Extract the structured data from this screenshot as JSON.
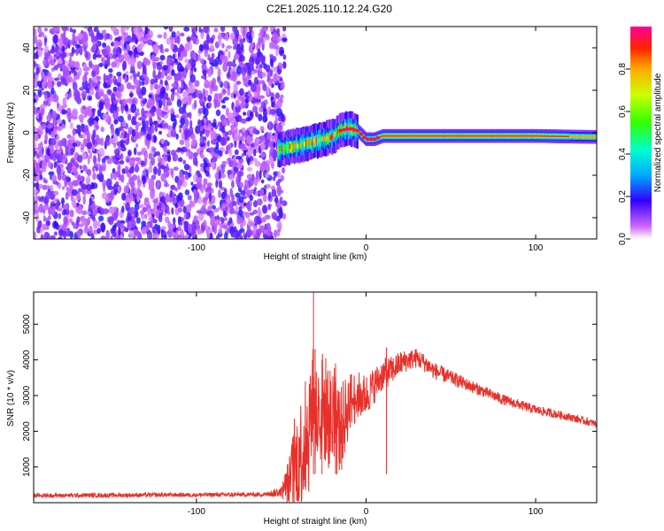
{
  "title": "C2E1.2025.110.12.24.G20",
  "colorbar": {
    "label": "Normalized spectral amplitude",
    "ticks": [
      "0.0",
      "0.2",
      "0.4",
      "0.6",
      "0.8"
    ],
    "range": [
      0,
      1
    ]
  },
  "chart_data": [
    {
      "type": "heatmap",
      "xlabel": "Height of straight line (km)",
      "ylabel": "Frequency (Hz)",
      "xlim": [
        -196,
        136
      ],
      "ylim": [
        -50,
        50
      ],
      "xticks": [
        "-100",
        "0",
        "100"
      ],
      "yticks": [
        "-40",
        "-20",
        "0",
        "20",
        "40"
      ],
      "noise_region_x": [
        -196,
        -52
      ],
      "signal_track": {
        "x": [
          -52,
          -40,
          -30,
          -20,
          -15,
          -10,
          -5,
          0,
          5,
          10,
          30,
          60,
          100,
          136
        ],
        "y": [
          -8,
          -6,
          -4,
          -2,
          1,
          2,
          1,
          -3,
          -3,
          -1.5,
          -1.5,
          -1.5,
          -1.5,
          -2
        ],
        "peak_amplitude": 0.95
      }
    },
    {
      "type": "line",
      "xlabel": "Height of straight line (km)",
      "ylabel": "SNR (10 * v/v)",
      "xlim": [
        -196,
        136
      ],
      "ylim": [
        0,
        5900
      ],
      "xticks": [
        "-100",
        "0",
        "100"
      ],
      "yticks": [
        "1000",
        "2000",
        "3000",
        "4000",
        "5000"
      ],
      "series": [
        {
          "color": "#e8302a",
          "x": [
            -196,
            -150,
            -100,
            -60,
            -50,
            -45,
            -40,
            -35,
            -32,
            -30,
            -25,
            -20,
            -15,
            -10,
            -5,
            0,
            5,
            10,
            15,
            20,
            25,
            30,
            35,
            40,
            50,
            60,
            70,
            80,
            90,
            100,
            110,
            120,
            136
          ],
          "values": [
            200,
            210,
            220,
            230,
            300,
            600,
            1200,
            1800,
            2600,
            2400,
            2700,
            2200,
            2000,
            2800,
            3000,
            3000,
            3300,
            3600,
            3700,
            3900,
            4000,
            4050,
            3900,
            3700,
            3500,
            3300,
            3100,
            2900,
            2750,
            2600,
            2500,
            2400,
            2200
          ],
          "noise_amplitude": [
            60,
            60,
            60,
            60,
            150,
            800,
            1600,
            1800,
            2000,
            1800,
            1600,
            1500,
            1300,
            900,
            700,
            600,
            500,
            450,
            400,
            350,
            300,
            280,
            260,
            240,
            200,
            180,
            160,
            150,
            140,
            130,
            120,
            110,
            100
          ],
          "spikes": [
            {
              "x": -31,
              "y": 5900
            },
            {
              "x": -30,
              "y": 4300
            },
            {
              "x": -26,
              "y": 4000
            },
            {
              "x": -18,
              "y": 3900
            },
            {
              "x": 12,
              "y": 4350
            }
          ]
        }
      ]
    }
  ]
}
